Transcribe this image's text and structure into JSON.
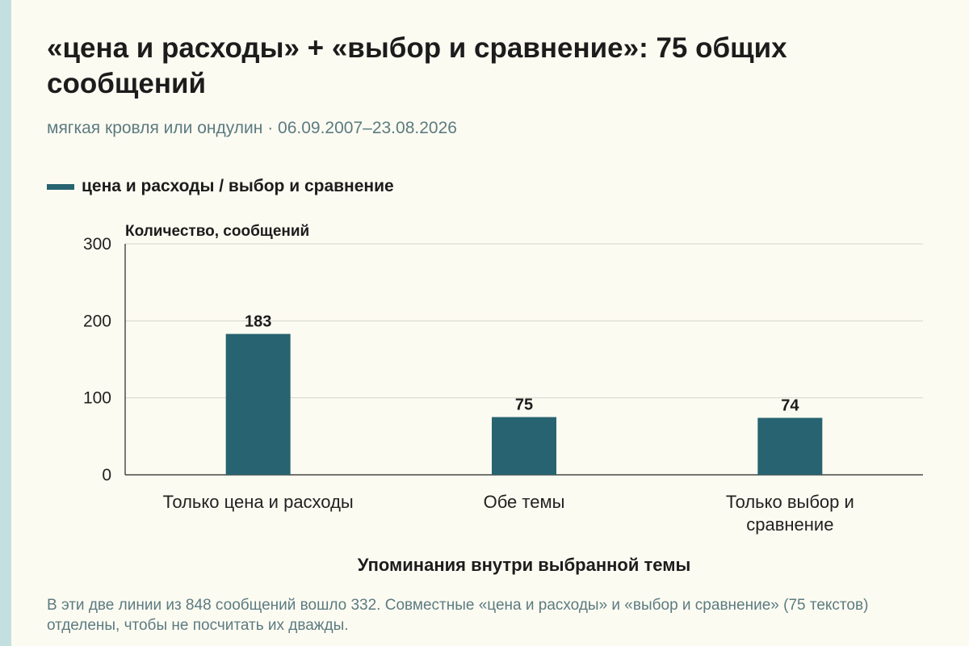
{
  "title": "«цена и расходы» + «выбор и сравнение»: 75 общих сообщений",
  "subtitle": "мягкая кровля или ондулин · 06.09.2007–23.08.2026",
  "legend": {
    "label": "цена и расходы / выбор и сравнение"
  },
  "footnote": "В эти две линии из 848 сообщений вошло 332. Совместные «цена и расходы» и «выбор и сравнение» (75 текстов) отделены, чтобы не посчитать их дважды.",
  "colors": {
    "bar": "#276370",
    "grid": "#d6d6cc",
    "axis": "#222222"
  },
  "chart_data": {
    "type": "bar",
    "categories": [
      [
        "Только цена и расходы"
      ],
      [
        "Обе темы"
      ],
      [
        "Только выбор и",
        "сравнение"
      ]
    ],
    "values": [
      183,
      75,
      74
    ],
    "ylabel": "Количество, сообщений",
    "xlabel": "Упоминания внутри выбранной темы",
    "ylim": [
      0,
      300
    ],
    "yticks": [
      0,
      100,
      200,
      300
    ],
    "grid": true,
    "data_labels": true
  }
}
